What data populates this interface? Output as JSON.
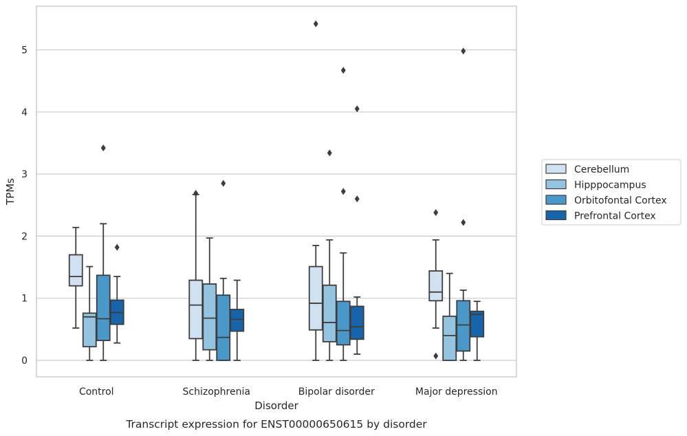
{
  "caption": "Transcript expression for ENST00000650615 by disorder",
  "chart_data": {
    "type": "box",
    "xlabel": "Disorder",
    "ylabel": "TPMs",
    "ylim": [
      -0.25,
      5.7
    ],
    "yticks": [
      "0",
      "1",
      "2",
      "3",
      "4",
      "5"
    ],
    "grid": "horizontal",
    "legend_position": "right",
    "categories": [
      "Control",
      "Schizophrenia",
      "Bipolar disorder",
      "Major depression"
    ],
    "series": [
      {
        "name": "Cerebellum",
        "color": "#d0e1f2",
        "boxes": [
          {
            "whisker_low": 0.52,
            "q1": 1.2,
            "median": 1.35,
            "q3": 1.7,
            "whisker_high": 2.14,
            "outliers": []
          },
          {
            "whisker_low": 0.0,
            "q1": 0.35,
            "median": 0.89,
            "q3": 1.29,
            "whisker_high": 2.67,
            "outliers": [
              2.69
            ]
          },
          {
            "whisker_low": 0.0,
            "q1": 0.49,
            "median": 0.92,
            "q3": 1.51,
            "whisker_high": 1.85,
            "outliers": [
              5.42
            ]
          },
          {
            "whisker_low": 0.52,
            "q1": 0.96,
            "median": 1.1,
            "q3": 1.44,
            "whisker_high": 1.94,
            "outliers": [
              2.38,
              0.07
            ]
          }
        ]
      },
      {
        "name": "Hipppocampus",
        "color": "#94c4df",
        "boxes": [
          {
            "whisker_low": 0.0,
            "q1": 0.22,
            "median": 0.7,
            "q3": 0.76,
            "whisker_high": 1.51,
            "outliers": []
          },
          {
            "whisker_low": 0.0,
            "q1": 0.17,
            "median": 0.68,
            "q3": 1.23,
            "whisker_high": 1.97,
            "outliers": []
          },
          {
            "whisker_low": 0.0,
            "q1": 0.3,
            "median": 0.61,
            "q3": 1.21,
            "whisker_high": 1.94,
            "outliers": [
              3.34
            ]
          },
          {
            "whisker_low": 0.0,
            "q1": 0.0,
            "median": 0.4,
            "q3": 0.71,
            "whisker_high": 1.4,
            "outliers": []
          }
        ]
      },
      {
        "name": "Orbitofontal Cortex",
        "color": "#4a98c9",
        "boxes": [
          {
            "whisker_low": 0.0,
            "q1": 0.32,
            "median": 0.67,
            "q3": 1.37,
            "whisker_high": 2.2,
            "outliers": [
              3.42
            ]
          },
          {
            "whisker_low": 0.0,
            "q1": 0.0,
            "median": 0.37,
            "q3": 1.05,
            "whisker_high": 1.32,
            "outliers": [
              2.85
            ]
          },
          {
            "whisker_low": 0.0,
            "q1": 0.25,
            "median": 0.48,
            "q3": 0.95,
            "whisker_high": 1.73,
            "outliers": [
              4.67,
              2.72
            ]
          },
          {
            "whisker_low": 0.0,
            "q1": 0.15,
            "median": 0.57,
            "q3": 0.96,
            "whisker_high": 1.13,
            "outliers": [
              4.98,
              2.22
            ]
          }
        ]
      },
      {
        "name": "Prefrontal Cortex",
        "color": "#1764ab",
        "boxes": [
          {
            "whisker_low": 0.28,
            "q1": 0.58,
            "median": 0.77,
            "q3": 0.97,
            "whisker_high": 1.35,
            "outliers": [
              1.82
            ]
          },
          {
            "whisker_low": 0.0,
            "q1": 0.47,
            "median": 0.66,
            "q3": 0.82,
            "whisker_high": 1.29,
            "outliers": []
          },
          {
            "whisker_low": 0.1,
            "q1": 0.34,
            "median": 0.54,
            "q3": 0.87,
            "whisker_high": 1.02,
            "outliers": [
              4.05,
              2.6
            ]
          },
          {
            "whisker_low": 0.0,
            "q1": 0.38,
            "median": 0.74,
            "q3": 0.79,
            "whisker_high": 0.95,
            "outliers": []
          }
        ]
      }
    ]
  }
}
